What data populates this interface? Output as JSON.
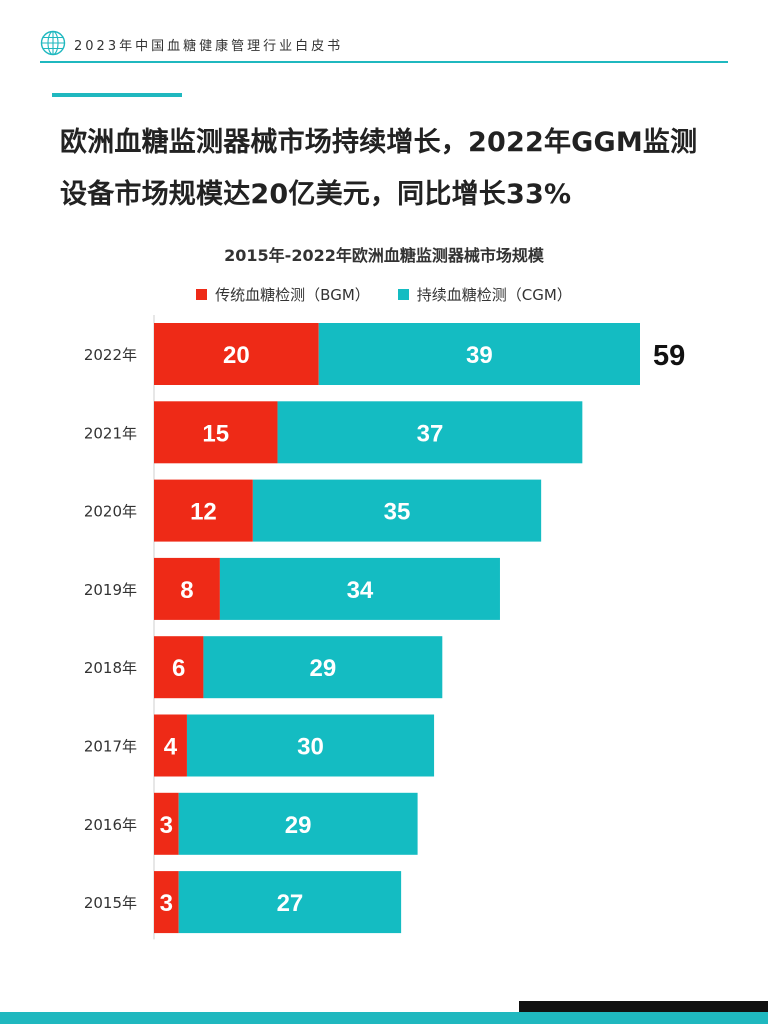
{
  "header": {
    "title": "2023年中国血糖健康管理行业白皮书"
  },
  "headline": {
    "line1": "欧洲血糖监测器械市场持续增长，2022年GGM监测",
    "line2": "设备市场规模达20亿美元，同比增长33%"
  },
  "colors": {
    "bgm": "#ee2a17",
    "cgm": "#14bcc2",
    "accent": "#1fb8bf"
  },
  "chart_data": {
    "type": "bar",
    "orientation": "horizontal",
    "stacked": true,
    "title": "2015年-2022年欧洲血糖监测器械市场规模",
    "categories": [
      "2022年",
      "2021年",
      "2020年",
      "2019年",
      "2018年",
      "2017年",
      "2016年",
      "2015年"
    ],
    "series": [
      {
        "name": "传统血糖检测（BGM）",
        "values": [
          20,
          15,
          12,
          8,
          6,
          4,
          3,
          3
        ]
      },
      {
        "name": "持续血糖检测（CGM）",
        "values": [
          39,
          37,
          35,
          34,
          29,
          30,
          29,
          27
        ]
      }
    ],
    "totals_labels": [
      {
        "category": "2022年",
        "text": "59"
      }
    ],
    "xlim": [
      0,
      59
    ],
    "legend_position": "top",
    "grid": false
  }
}
